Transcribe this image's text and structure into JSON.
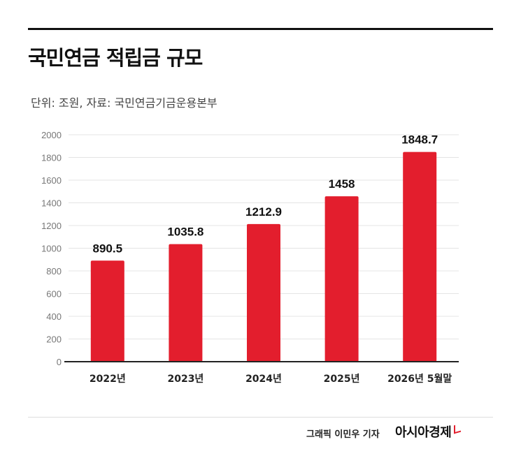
{
  "title": "국민연금 적립금 규모",
  "subtitle": "단위: 조원, 자료: 국민연금기금운용본부",
  "credit": "그래픽  이민우 기자",
  "logo_text": "아시아경제",
  "chart_data": {
    "type": "bar",
    "categories": [
      "2022년",
      "2023년",
      "2024년",
      "2025년",
      "2026년 5월말"
    ],
    "values": [
      890.5,
      1035.8,
      1212.9,
      1458,
      1848.7
    ],
    "value_labels": [
      "890.5",
      "1035.8",
      "1212.9",
      "1458",
      "1848.7"
    ],
    "y_ticks": [
      0,
      200,
      400,
      600,
      800,
      1000,
      1200,
      1400,
      1600,
      1800,
      2000
    ],
    "ylim": [
      0,
      2000
    ],
    "grid": true,
    "bar_color": "#e31e2d"
  }
}
